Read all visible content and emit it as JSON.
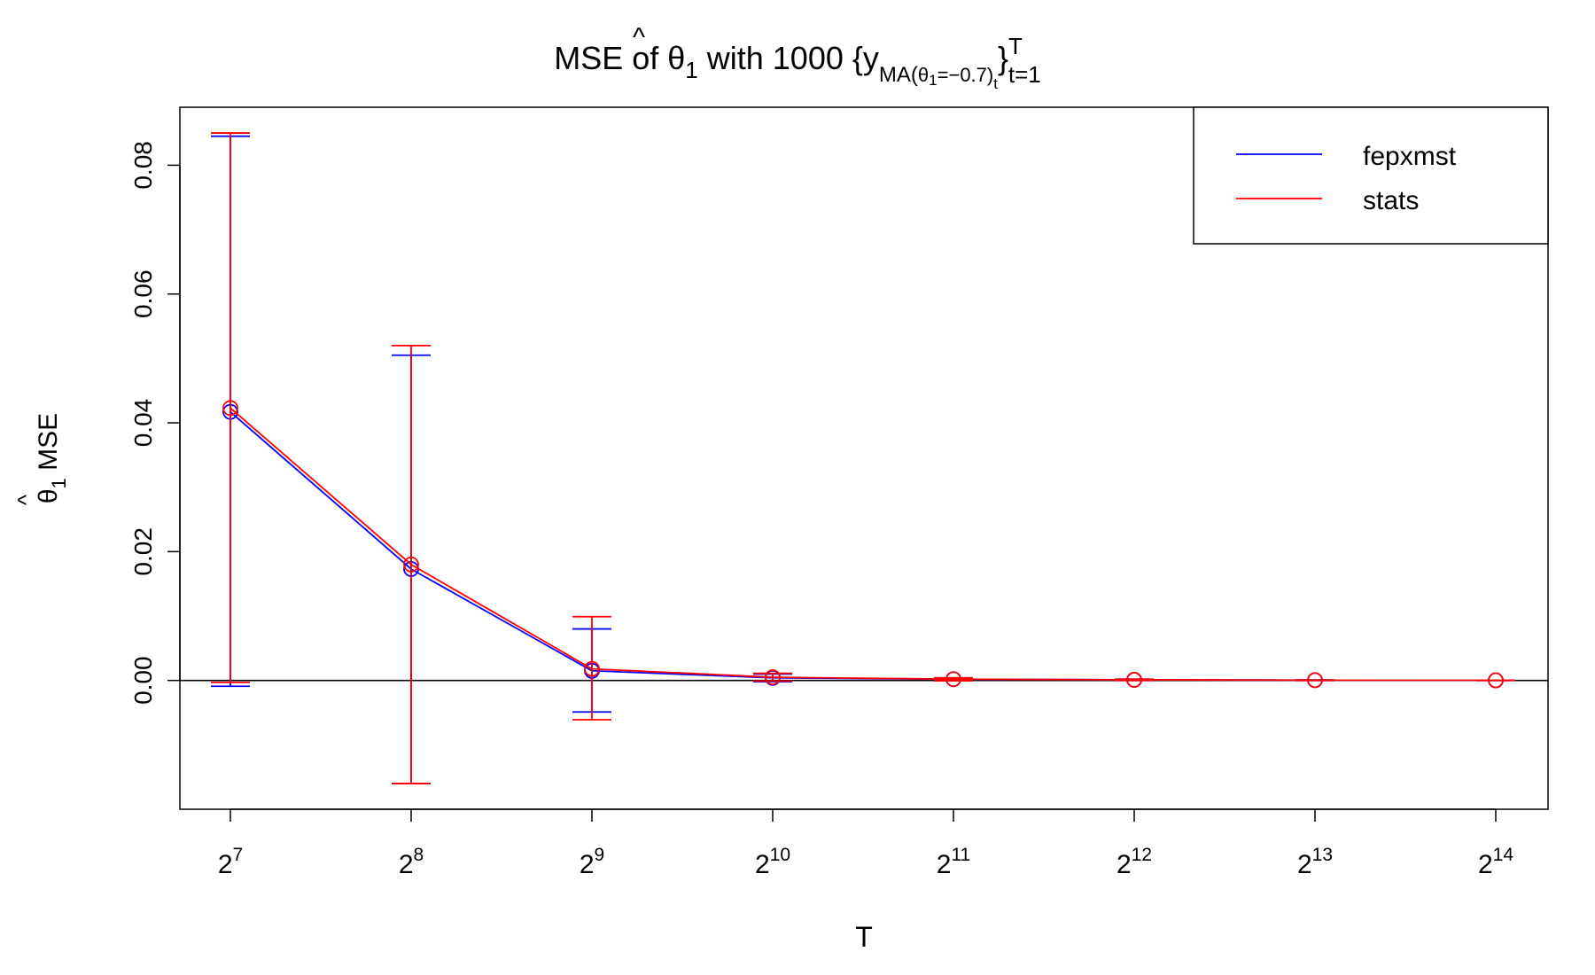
{
  "chart_data": {
    "type": "line",
    "title": {
      "prefix": "MSE of ",
      "theta": "θ",
      "hat": "^",
      "sub1": "1",
      "mid": " with 1000  {y",
      "sub_ma": "MA(",
      "sub_theta": "θ",
      "sub_theta_sub": "1",
      "sub_eq": "=−0.7)",
      "sub_t": "t",
      "close": "}",
      "sup": "T",
      "sub_range": "t=1"
    },
    "xlabel": "T",
    "ylabel": {
      "theta": "θ",
      "hat": "^",
      "sub": "1",
      "text": " MSE"
    },
    "ylim": [
      -0.02,
      0.089
    ],
    "y_ticks": [
      0.0,
      0.02,
      0.04,
      0.06,
      0.08
    ],
    "y_tick_labels": [
      "0.00",
      "0.02",
      "0.04",
      "0.06",
      "0.08"
    ],
    "x_ticks": [
      {
        "base": "2",
        "exp": "7"
      },
      {
        "base": "2",
        "exp": "8"
      },
      {
        "base": "2",
        "exp": "9"
      },
      {
        "base": "2",
        "exp": "10"
      },
      {
        "base": "2",
        "exp": "11"
      },
      {
        "base": "2",
        "exp": "12"
      },
      {
        "base": "2",
        "exp": "13"
      },
      {
        "base": "2",
        "exp": "14"
      }
    ],
    "x": [
      128,
      256,
      512,
      1024,
      2048,
      4096,
      8192,
      16384
    ],
    "zero_line": 0,
    "legend_position": "top-right",
    "series": [
      {
        "name": "fepxmst",
        "color": "#0000ff",
        "values": [
          0.0417,
          0.0173,
          0.0015,
          0.0004,
          0.0002,
          0.0001,
          4e-05,
          2e-05
        ],
        "lower": [
          -0.0009,
          -0.016,
          -0.0049,
          -0.0002,
          -5e-05,
          0.0,
          0.0,
          0.0
        ],
        "upper": [
          0.0845,
          0.0505,
          0.008,
          0.001,
          0.0004,
          0.0002,
          8e-05,
          4e-05
        ]
      },
      {
        "name": "stats",
        "color": "#ff0000",
        "values": [
          0.0423,
          0.018,
          0.0018,
          0.0005,
          0.0002,
          0.0001,
          4e-05,
          2e-05
        ],
        "lower": [
          -0.0003,
          -0.016,
          -0.0061,
          -0.0001,
          -5e-05,
          0.0,
          0.0,
          0.0
        ],
        "upper": [
          0.085,
          0.052,
          0.0099,
          0.0011,
          0.0004,
          0.0002,
          8e-05,
          4e-05
        ]
      }
    ]
  }
}
